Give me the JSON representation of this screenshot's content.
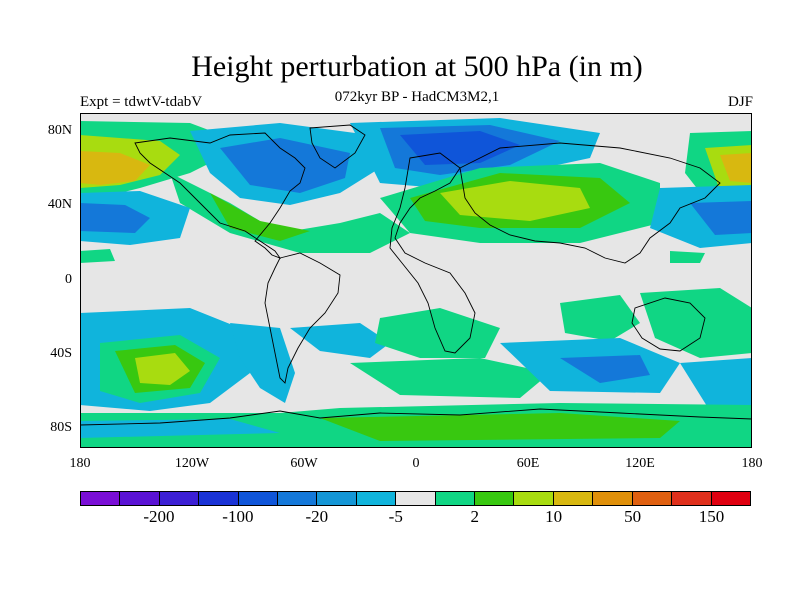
{
  "title": "Height perturbation at 500 hPa (in m)",
  "subtitle": "072kyr BP - HadCM3M2,1",
  "left_label": "Expt = tdwtV-tdabV",
  "right_label": "DJF",
  "lat_ticks": [
    {
      "value": 80,
      "label": "80N"
    },
    {
      "value": 40,
      "label": "40N"
    },
    {
      "value": 0,
      "label": "0"
    },
    {
      "value": -40,
      "label": "40S"
    },
    {
      "value": -80,
      "label": "80S"
    }
  ],
  "lon_ticks": [
    {
      "value": -180,
      "label": "180"
    },
    {
      "value": -120,
      "label": "120W"
    },
    {
      "value": -60,
      "label": "60W"
    },
    {
      "value": 0,
      "label": "0"
    },
    {
      "value": 60,
      "label": "60E"
    },
    {
      "value": 120,
      "label": "120E"
    },
    {
      "value": 180,
      "label": "180"
    }
  ],
  "colorbar": {
    "colors": [
      "#7a0ed6",
      "#5a12d4",
      "#3c1fd4",
      "#1a33d6",
      "#0f55d9",
      "#1478d9",
      "#1496d6",
      "#10b4dc",
      "#e6e6e6",
      "#10d684",
      "#38c810",
      "#a8dc10",
      "#d8b810",
      "#e0900a",
      "#e06010",
      "#e0301c",
      "#e00010"
    ],
    "labels": [
      {
        "text": "-200",
        "boundary": 2
      },
      {
        "text": "-100",
        "boundary": 4
      },
      {
        "text": "-20",
        "boundary": 6
      },
      {
        "text": "-5",
        "boundary": 8
      },
      {
        "text": "2",
        "boundary": 10
      },
      {
        "text": "10",
        "boundary": 12
      },
      {
        "text": "50",
        "boundary": 14
      },
      {
        "text": "150",
        "boundary": 16
      }
    ]
  },
  "map_colors": {
    "green": "#10d684",
    "light_green": "#38c810",
    "yellow_green": "#a8dc10",
    "gold": "#d8b810",
    "cyan": "#10b4dc",
    "light_blue": "#1496d6",
    "blue": "#1478d9",
    "dark_blue": "#0f55d9",
    "deep_blue": "#1a33d6"
  }
}
